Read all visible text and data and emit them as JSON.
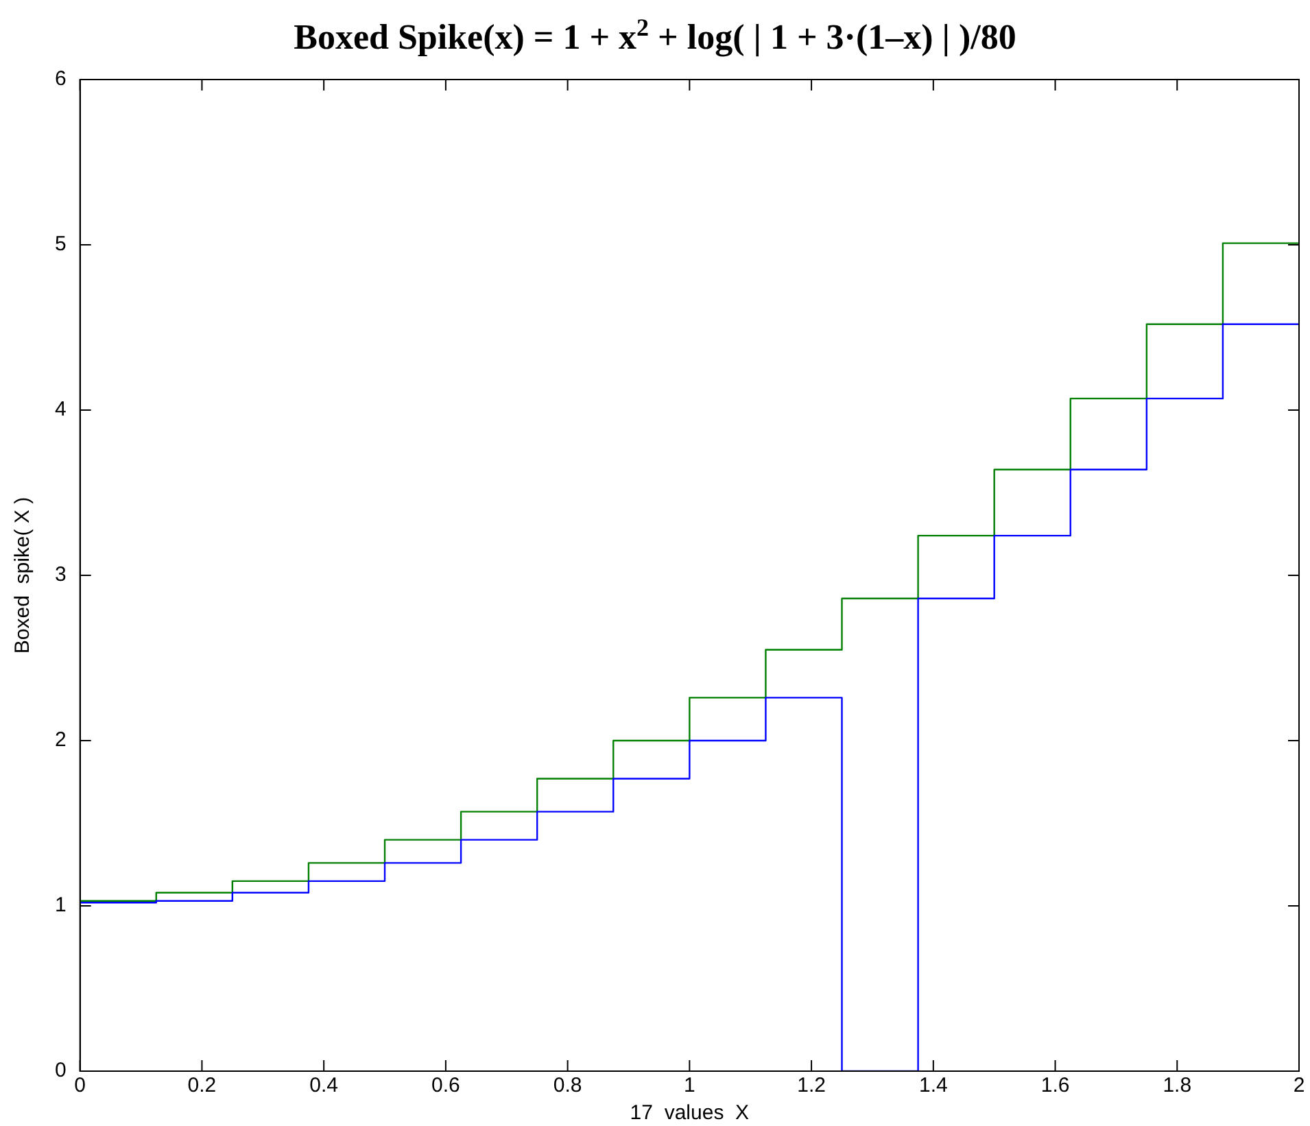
{
  "chart_data": {
    "type": "step",
    "title": "Boxed Spike(x) = 1 + x$^{2}$ + log( | 1 + 3·(1–x) | )/80",
    "xlabel": "17  values  X",
    "ylabel": "Boxed  spike( X )",
    "x": [
      0,
      0.125,
      0.25,
      0.375,
      0.5,
      0.625,
      0.75,
      0.875,
      1,
      1.125,
      1.25,
      1.375,
      1.5,
      1.625,
      1.75,
      1.875,
      2
    ],
    "series": [
      {
        "color": "#0000ff",
        "values": [
          1.02,
          1.03,
          1.08,
          1.15,
          1.26,
          1.4,
          1.57,
          1.77,
          2.0,
          2.26,
          0,
          2.86,
          3.24,
          3.64,
          4.07,
          4.52,
          4.52
        ]
      },
      {
        "color": "#008000",
        "values": [
          1.03,
          1.08,
          1.15,
          1.26,
          1.4,
          1.57,
          1.77,
          2.0,
          2.26,
          2.55,
          2.86,
          3.24,
          3.64,
          4.07,
          4.52,
          5.01,
          5.01
        ]
      }
    ],
    "xlim": [
      0,
      2
    ],
    "xticks": [
      0,
      0.2,
      0.4,
      0.6,
      0.8,
      1,
      1.2,
      1.4,
      1.6,
      1.8,
      2
    ],
    "ylim": [
      0,
      6
    ],
    "yticks": [
      0,
      1,
      2,
      3,
      4,
      5,
      6
    ],
    "grid": false,
    "legend": false
  }
}
